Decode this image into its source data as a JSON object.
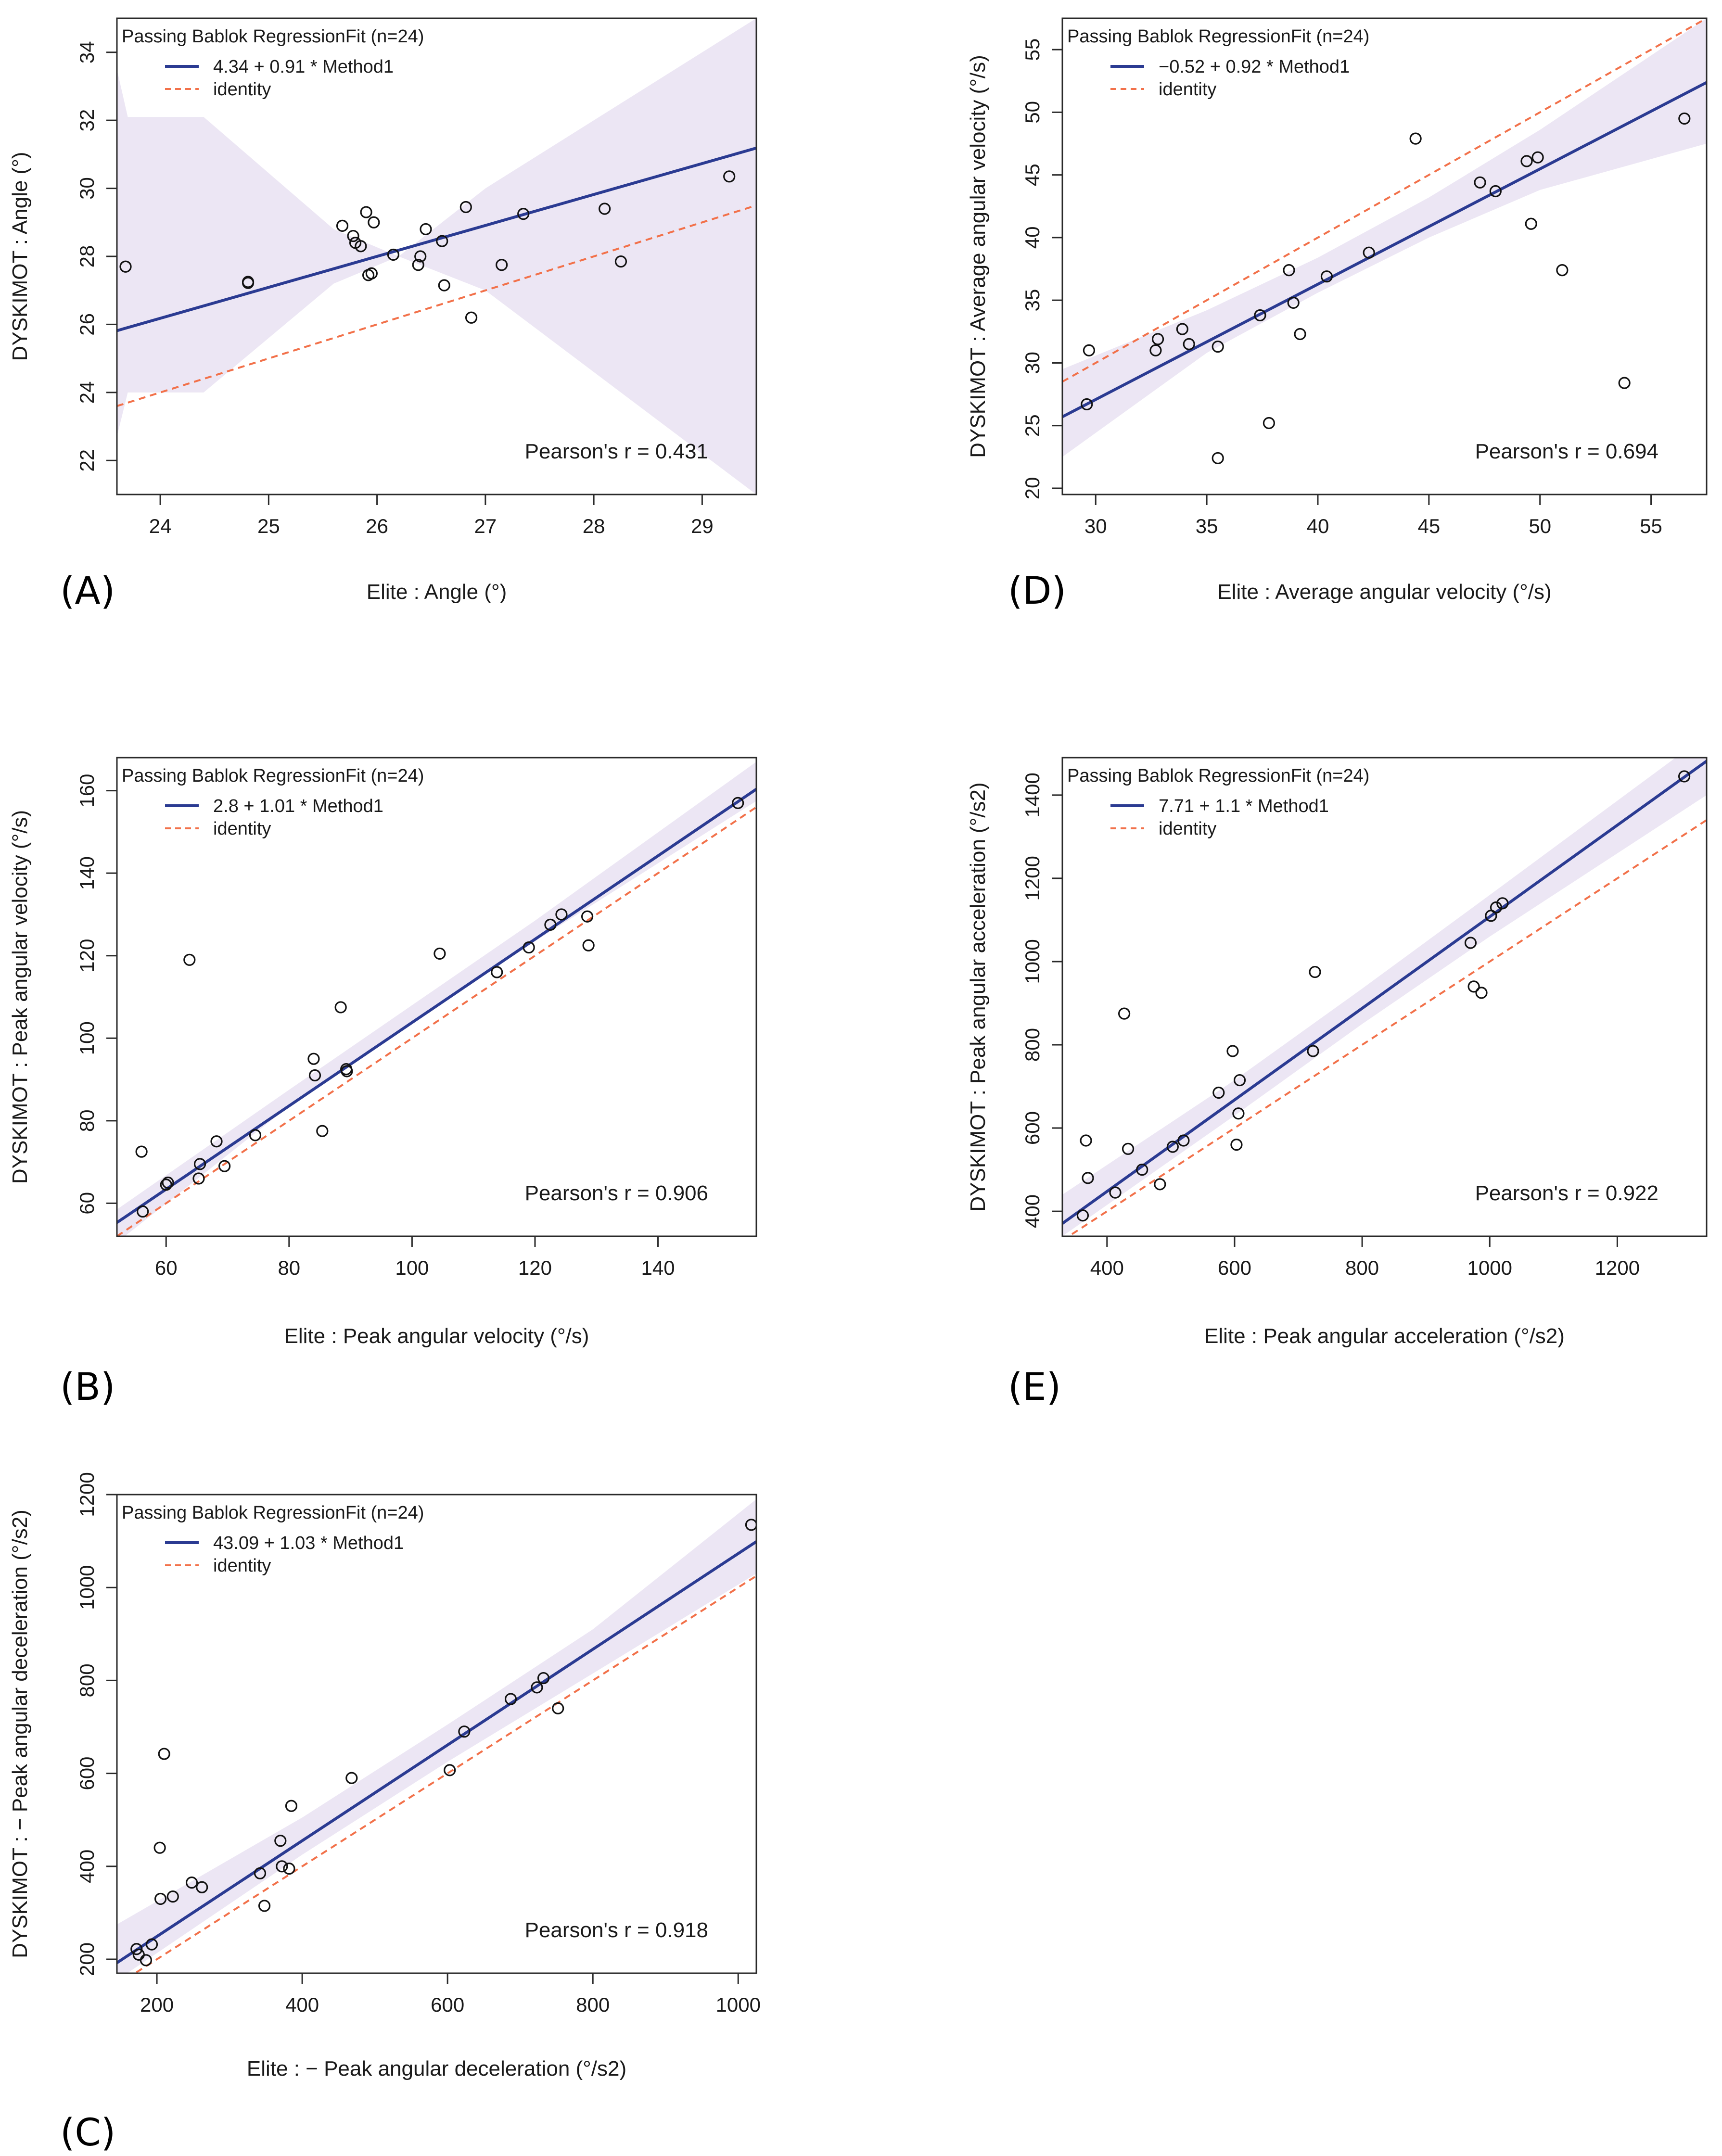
{
  "chart_data": [
    {
      "id": "A",
      "type": "scatter",
      "panel_label": "(A)",
      "xlabel": "Elite : Angle (°)",
      "ylabel": "DYSKIMOT : Angle (°)",
      "xlim": [
        23.6,
        29.5
      ],
      "ylim": [
        21.0,
        35.0
      ],
      "xticks": [
        24,
        25,
        26,
        27,
        28,
        29
      ],
      "yticks": [
        22,
        24,
        26,
        28,
        30,
        32,
        34
      ],
      "legend_title": "Passing Bablok RegressionFit (n=24)",
      "fit_label": "4.34 + 0.91 * Method1",
      "identity_label": "identity",
      "pearson_text": "Pearson's r = 0.431",
      "fit": {
        "intercept": 4.34,
        "slope": 0.91
      },
      "band": [
        [
          23.6,
          22.7,
          33.5
        ],
        [
          23.7,
          24.0,
          32.1
        ],
        [
          24.4,
          24.0,
          32.1
        ],
        [
          25.6,
          27.2,
          28.8
        ],
        [
          26.2,
          28.0,
          28.0
        ],
        [
          27.0,
          27.0,
          30.0
        ],
        [
          29.5,
          21.0,
          35.0
        ]
      ],
      "points": [
        [
          23.68,
          27.7
        ],
        [
          24.81,
          27.25
        ],
        [
          24.81,
          27.22
        ],
        [
          25.68,
          28.9
        ],
        [
          25.78,
          28.6
        ],
        [
          25.8,
          28.4
        ],
        [
          25.85,
          28.3
        ],
        [
          25.9,
          29.3
        ],
        [
          25.92,
          27.45
        ],
        [
          25.95,
          27.5
        ],
        [
          25.97,
          29.0
        ],
        [
          26.15,
          28.05
        ],
        [
          26.38,
          27.75
        ],
        [
          26.4,
          28.0
        ],
        [
          26.45,
          28.8
        ],
        [
          26.6,
          28.45
        ],
        [
          26.62,
          27.15
        ],
        [
          26.82,
          29.45
        ],
        [
          26.87,
          26.2
        ],
        [
          27.15,
          27.75
        ],
        [
          27.35,
          29.25
        ],
        [
          28.1,
          29.4
        ],
        [
          28.25,
          27.85
        ],
        [
          29.25,
          30.35
        ]
      ]
    },
    {
      "id": "D",
      "type": "scatter",
      "panel_label": "(D)",
      "xlabel": "Elite : Average angular velocity (°/s)",
      "ylabel": "DYSKIMOT : Average angular velocity (°/s)",
      "xlim": [
        28.5,
        57.5
      ],
      "ylim": [
        19.5,
        57.5
      ],
      "xticks": [
        30,
        35,
        40,
        45,
        50,
        55
      ],
      "yticks": [
        20,
        25,
        30,
        35,
        40,
        45,
        50,
        55
      ],
      "legend_title": "Passing Bablok RegressionFit (n=24)",
      "fit_label": "−0.52 + 0.92 * Method1",
      "identity_label": "identity",
      "pearson_text": "Pearson's r = 0.694",
      "fit": {
        "intercept": -0.52,
        "slope": 0.92
      },
      "band": [
        [
          28.5,
          22.5,
          29.5
        ],
        [
          35,
          30.8,
          34.2
        ],
        [
          40,
          35.6,
          38.4
        ],
        [
          45,
          40.0,
          43.2
        ],
        [
          50,
          43.8,
          48.6
        ],
        [
          57.5,
          47.5,
          57.5
        ]
      ],
      "points": [
        [
          29.6,
          26.7
        ],
        [
          29.7,
          31.0
        ],
        [
          32.7,
          31.0
        ],
        [
          32.8,
          31.9
        ],
        [
          33.9,
          32.7
        ],
        [
          34.2,
          31.5
        ],
        [
          35.5,
          22.4
        ],
        [
          35.5,
          31.3
        ],
        [
          37.4,
          33.8
        ],
        [
          37.8,
          25.2
        ],
        [
          38.7,
          37.4
        ],
        [
          38.9,
          34.8
        ],
        [
          39.2,
          32.3
        ],
        [
          40.4,
          36.9
        ],
        [
          42.3,
          38.8
        ],
        [
          44.4,
          47.9
        ],
        [
          47.3,
          44.4
        ],
        [
          48.0,
          43.7
        ],
        [
          49.4,
          46.1
        ],
        [
          49.6,
          41.1
        ],
        [
          49.9,
          46.4
        ],
        [
          51.0,
          37.4
        ],
        [
          53.8,
          28.4
        ],
        [
          56.5,
          49.5
        ]
      ]
    },
    {
      "id": "B",
      "type": "scatter",
      "panel_label": "(B)",
      "xlabel": "Elite : Peak angular velocity (°/s)",
      "ylabel": "DYSKIMOT : Peak angular velocity (°/s)",
      "xlim": [
        52,
        156
      ],
      "ylim": [
        52,
        168
      ],
      "xticks": [
        60,
        80,
        100,
        120,
        140
      ],
      "yticks": [
        60,
        80,
        100,
        120,
        140,
        160
      ],
      "legend_title": "Passing Bablok RegressionFit (n=24)",
      "fit_label": "2.8 + 1.01 * Method1",
      "identity_label": "identity",
      "pearson_text": "Pearson's r = 0.906",
      "fit": {
        "intercept": 2.8,
        "slope": 1.01
      },
      "band": [
        [
          52,
          50.5,
          58.5
        ],
        [
          80,
          83.5,
          87.5
        ],
        [
          100,
          103.5,
          108.0
        ],
        [
          120,
          123.5,
          128.5
        ],
        [
          156,
          157.5,
          167.0
        ]
      ],
      "points": [
        [
          56,
          72.5
        ],
        [
          56.2,
          58
        ],
        [
          60,
          64.5
        ],
        [
          60.3,
          65
        ],
        [
          63.8,
          119
        ],
        [
          65.3,
          66
        ],
        [
          65.5,
          69.5
        ],
        [
          68.2,
          75
        ],
        [
          69.5,
          69
        ],
        [
          74.5,
          76.5
        ],
        [
          84,
          95
        ],
        [
          84.2,
          91
        ],
        [
          85.4,
          77.5
        ],
        [
          88.4,
          107.5
        ],
        [
          89.3,
          92.5
        ],
        [
          89.4,
          92
        ],
        [
          104.5,
          120.5
        ],
        [
          113.8,
          116
        ],
        [
          119,
          122
        ],
        [
          122.5,
          127.5
        ],
        [
          124.3,
          130
        ],
        [
          128.5,
          129.5
        ],
        [
          128.7,
          122.5
        ],
        [
          153,
          157
        ]
      ]
    },
    {
      "id": "E",
      "type": "scatter",
      "panel_label": "(E)",
      "xlabel": "Elite : Peak angular acceleration (°/s2)",
      "ylabel": "DYSKIMOT : Peak angular acceleration (°/s2)",
      "xlim": [
        330,
        1340
      ],
      "ylim": [
        340,
        1490
      ],
      "xticks": [
        400,
        600,
        800,
        1000,
        1200
      ],
      "yticks": [
        400,
        600,
        800,
        1000,
        1200,
        1400
      ],
      "legend_title": "Passing Bablok RegressionFit (n=24)",
      "fit_label": "7.71 + 1.1 * Method1",
      "identity_label": "identity",
      "pearson_text": "Pearson's r = 0.922",
      "fit": {
        "intercept": 7.71,
        "slope": 1.1
      },
      "band": [
        [
          330,
          340,
          440
        ],
        [
          600,
          630,
          715
        ],
        [
          800,
          850,
          935
        ],
        [
          1000,
          1060,
          1160
        ],
        [
          1340,
          1400,
          1545
        ]
      ],
      "points": [
        [
          362,
          390
        ],
        [
          367,
          570
        ],
        [
          370,
          480
        ],
        [
          413,
          445
        ],
        [
          427,
          875
        ],
        [
          433,
          550
        ],
        [
          455,
          500
        ],
        [
          483,
          465
        ],
        [
          503,
          555
        ],
        [
          520,
          570
        ],
        [
          575,
          685
        ],
        [
          597,
          785
        ],
        [
          603,
          560
        ],
        [
          606,
          635
        ],
        [
          608,
          715
        ],
        [
          723,
          785
        ],
        [
          726,
          975
        ],
        [
          970,
          1045
        ],
        [
          975,
          940
        ],
        [
          987,
          925
        ],
        [
          1002,
          1110
        ],
        [
          1010,
          1130
        ],
        [
          1020,
          1140
        ],
        [
          1305,
          1445
        ]
      ]
    },
    {
      "id": "C",
      "type": "scatter",
      "panel_label": "(C)",
      "xlabel": "Elite : − Peak angular deceleration (°/s2)",
      "ylabel": "DYSKIMOT : − Peak angular deceleration (°/s2)",
      "xlim": [
        145,
        1025
      ],
      "ylim": [
        170,
        1200
      ],
      "xticks": [
        200,
        400,
        600,
        800,
        1000
      ],
      "yticks": [
        200,
        400,
        600,
        800,
        1000,
        1200
      ],
      "legend_title": "Passing Bablok RegressionFit (n=24)",
      "fit_label": "43.09 + 1.03 * Method1",
      "identity_label": "identity",
      "pearson_text": "Pearson's r = 0.918",
      "fit": {
        "intercept": 43.09,
        "slope": 1.03
      },
      "band": [
        [
          145,
          155,
          275
        ],
        [
          400,
          425,
          505
        ],
        [
          600,
          625,
          705
        ],
        [
          800,
          815,
          910
        ],
        [
          1025,
          1030,
          1190
        ]
      ],
      "points": [
        [
          172,
          222
        ],
        [
          175,
          210
        ],
        [
          185,
          198
        ],
        [
          193,
          232
        ],
        [
          204,
          440
        ],
        [
          205,
          330
        ],
        [
          210,
          642
        ],
        [
          222,
          335
        ],
        [
          248,
          365
        ],
        [
          262,
          355
        ],
        [
          342,
          385
        ],
        [
          348,
          315
        ],
        [
          370,
          455
        ],
        [
          372,
          400
        ],
        [
          382,
          395
        ],
        [
          385,
          530
        ],
        [
          468,
          590
        ],
        [
          603,
          607
        ],
        [
          623,
          690
        ],
        [
          687,
          760
        ],
        [
          723,
          785
        ],
        [
          732,
          805
        ],
        [
          752,
          740
        ],
        [
          1018,
          1135
        ]
      ]
    }
  ]
}
